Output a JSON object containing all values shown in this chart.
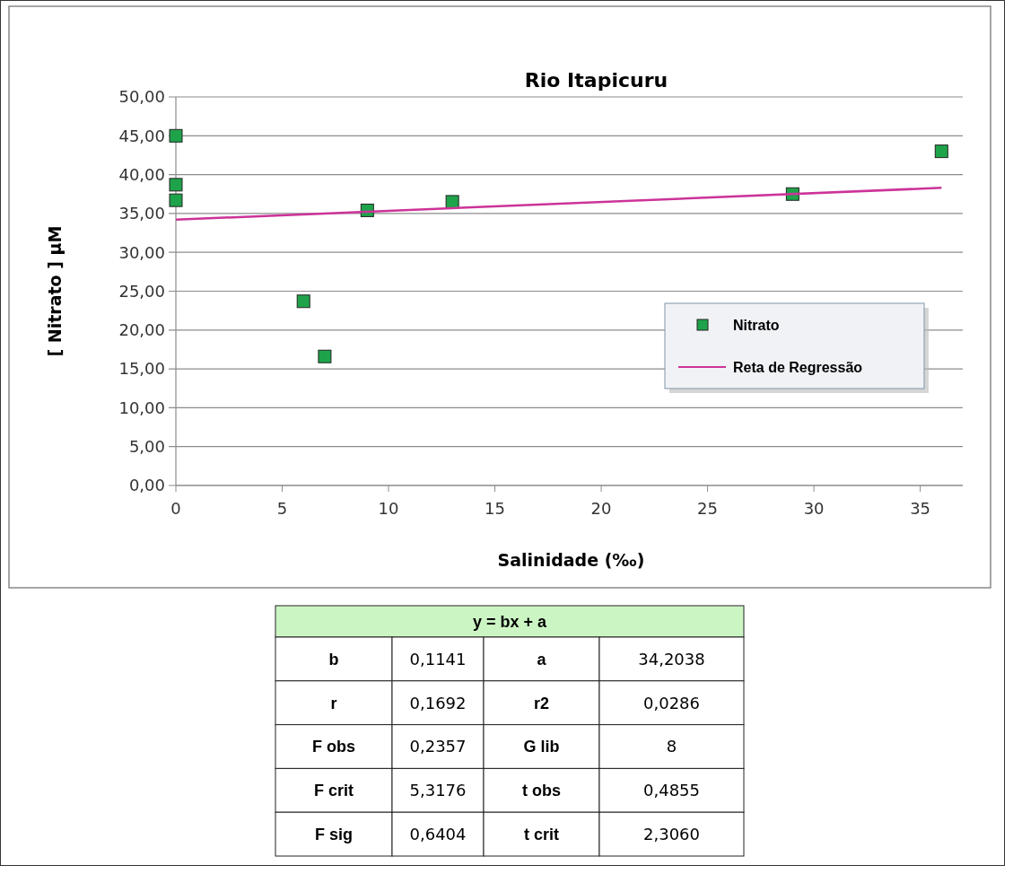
{
  "chart_data": {
    "type": "scatter",
    "title": "Rio Itapicuru",
    "xlabel": "Salinidade (‰)",
    "ylabel": "[ Nitrato ]  µM",
    "series": [
      {
        "name": "Nitrato",
        "color": "#1fa34a",
        "marker": "square",
        "x": [
          0,
          0,
          0,
          6,
          7,
          9,
          13,
          29,
          36
        ],
        "values": [
          45.0,
          38.7,
          36.7,
          23.7,
          16.6,
          35.4,
          36.5,
          37.5,
          43.0
        ]
      },
      {
        "name": "Reta de Regressão",
        "type": "line",
        "color": "#cc3399",
        "marker": "none",
        "line_style": "solid",
        "x": [
          0,
          36
        ],
        "values": [
          34.2,
          38.3
        ]
      }
    ],
    "xlim": [
      0,
      37
    ],
    "xticks": [
      0,
      5,
      10,
      15,
      20,
      25,
      30,
      35
    ],
    "ylim": [
      0,
      50
    ],
    "yticks": [
      {
        "value": 0,
        "label": "0,00"
      },
      {
        "value": 5,
        "label": "5,00"
      },
      {
        "value": 10,
        "label": "10,00"
      },
      {
        "value": 15,
        "label": "15,00"
      },
      {
        "value": 20,
        "label": "20,00"
      },
      {
        "value": 25,
        "label": "25,00"
      },
      {
        "value": 30,
        "label": "30,00"
      },
      {
        "value": 35,
        "label": "35,00"
      },
      {
        "value": 40,
        "label": "40,00"
      },
      {
        "value": 45,
        "label": "45,00"
      },
      {
        "value": 50,
        "label": "50,00"
      }
    ],
    "grid": "y",
    "legend": "right",
    "annotations": [
      "y = bx + a",
      "b",
      "0,1141",
      "a",
      "34,2038",
      "r",
      "0,1692",
      "r2",
      "0,0286",
      "F obs",
      "0,2357",
      "G lib",
      "8",
      "F crit",
      "5,3176",
      "t obs",
      "0,4855",
      "F sig",
      "0,6404",
      "t crit",
      "2,3060"
    ]
  }
}
